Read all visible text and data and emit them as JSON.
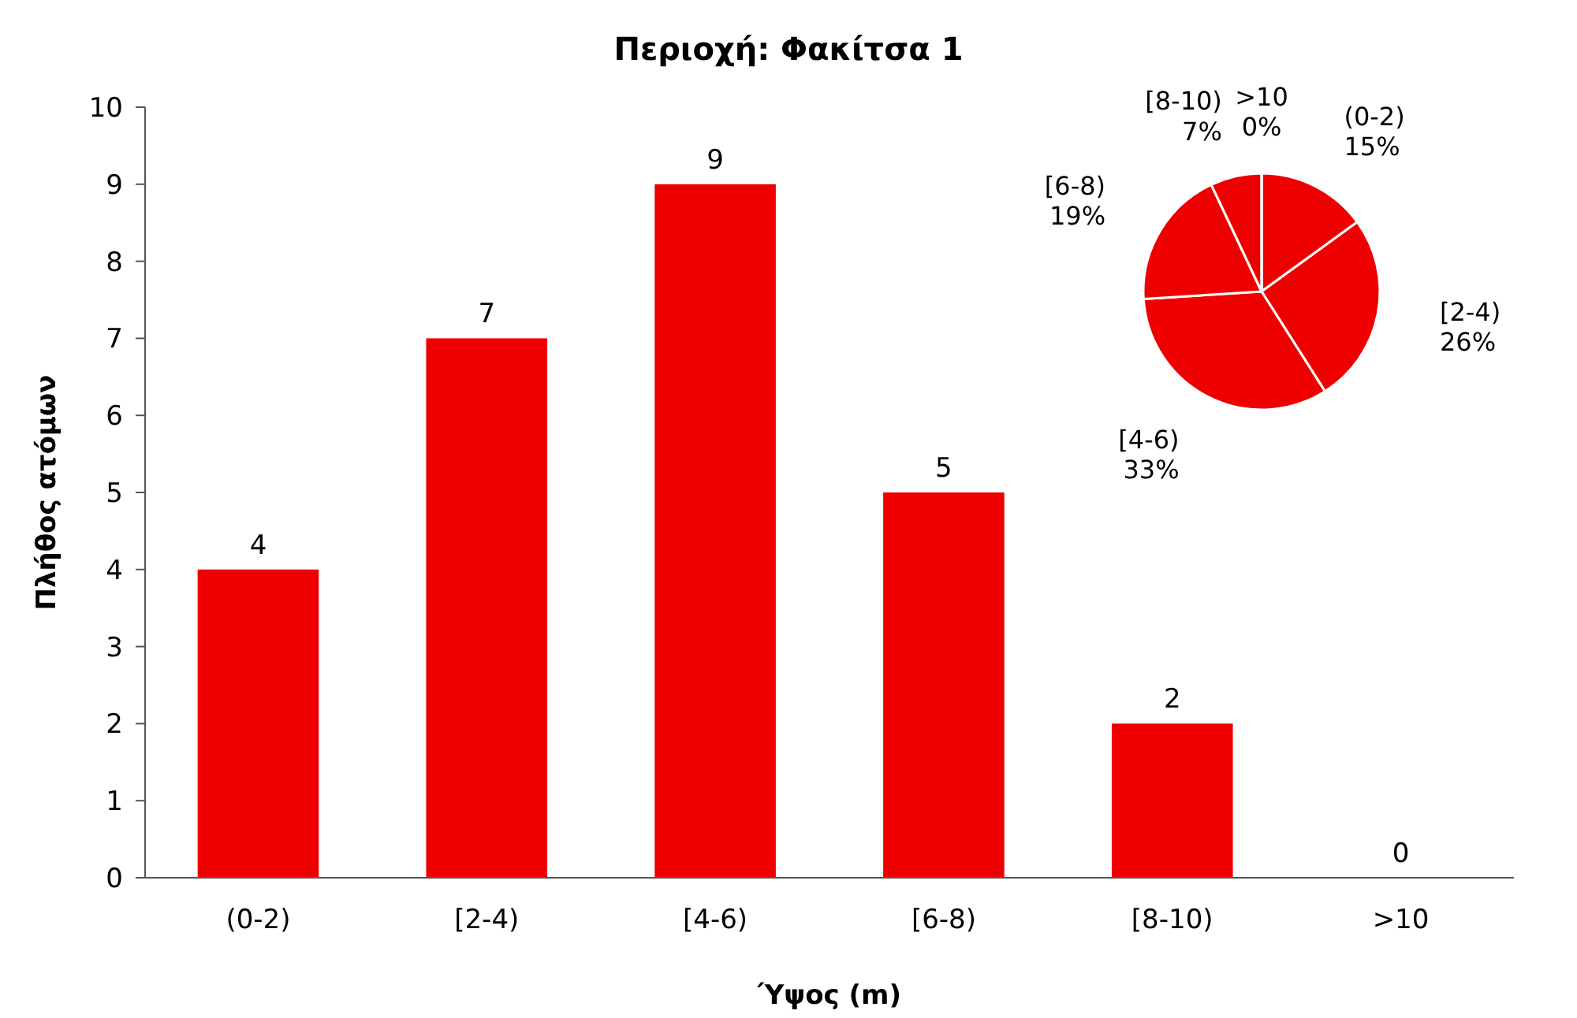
{
  "chart_data": [
    {
      "type": "bar",
      "title": "Περιοχή: Φακίτσα 1",
      "xlabel": "Ύψος (m)",
      "ylabel": "Πλήθος ατόμων",
      "categories": [
        "(0-2)",
        "[2-4)",
        "[4-6)",
        "[6-8)",
        "[8-10)",
        ">10"
      ],
      "values": [
        4,
        7,
        9,
        5,
        2,
        0
      ],
      "color": "#ee0000",
      "ylim": [
        0,
        10
      ],
      "yticks": [
        0,
        1,
        2,
        3,
        4,
        5,
        6,
        7,
        8,
        9,
        10
      ],
      "data_labels": true
    },
    {
      "type": "pie",
      "categories": [
        "(0-2)",
        "[2-4)",
        "[4-6)",
        "[6-8)",
        "[8-10)",
        ">10"
      ],
      "values": [
        15,
        26,
        33,
        19,
        7,
        0
      ],
      "colors": [
        "#ee0000",
        "#ee0000",
        "#ee0000",
        "#ee0000",
        "#ee0000",
        "#ee0000"
      ],
      "value_labels": [
        "15%",
        "26%",
        "33%",
        "19%",
        "7%",
        "0%"
      ]
    }
  ]
}
